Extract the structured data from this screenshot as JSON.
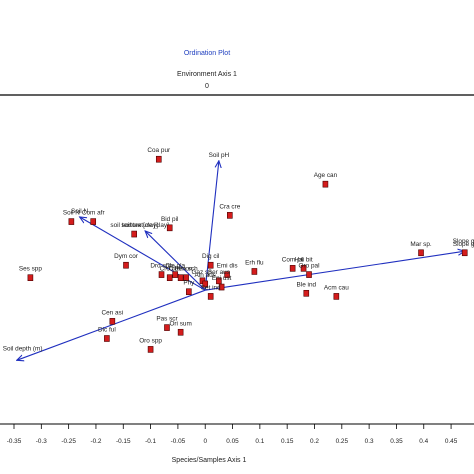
{
  "chart_data": {
    "type": "scatter",
    "title": "Ordination Plot",
    "top_axis_label": "Environment Axis 1",
    "top_axis_tick": "0",
    "xlabel": "Species/Samples Axis 1",
    "ylabel": "",
    "xlim": [
      -0.35,
      0.47
    ],
    "ylim": [
      -0.41,
      0.61
    ],
    "x_ticks": [
      "-0.35",
      "-0.3",
      "-0.25",
      "-0.2",
      "-0.15",
      "-0.1",
      "-0.05",
      "0",
      "0.05",
      "0.1",
      "0.15",
      "0.2",
      "0.25",
      "0.3",
      "0.35",
      "0.4",
      "0.45"
    ],
    "x_tick_values": [
      -0.35,
      -0.3,
      -0.25,
      -0.2,
      -0.15,
      -0.1,
      -0.05,
      0,
      0.05,
      0.1,
      0.15,
      0.2,
      0.25,
      0.3,
      0.35,
      0.4,
      0.45
    ],
    "grid": false,
    "colors": {
      "vector": "#1f2fbf",
      "point_fill": "#d41c1c",
      "point_stroke": "#4a0000"
    },
    "points": [
      {
        "label": "Coa pur",
        "x": -0.085,
        "y": 0.42
      },
      {
        "label": "Age can",
        "x": 0.22,
        "y": 0.34
      },
      {
        "label": "Soil N",
        "x": -0.245,
        "y": 0.22
      },
      {
        "label": "Com afr",
        "x": -0.205,
        "y": 0.22
      },
      {
        "label": "soil texture [clay]",
        "x": -0.13,
        "y": 0.18
      },
      {
        "label": "Bid pil",
        "x": -0.065,
        "y": 0.2
      },
      {
        "label": "Cra cre",
        "x": 0.045,
        "y": 0.24
      },
      {
        "label": "Slope gr",
        "x": 0.475,
        "y": 0.12
      },
      {
        "label": "Mar sp.",
        "x": 0.395,
        "y": 0.12
      },
      {
        "label": "Ses spp",
        "x": -0.32,
        "y": 0.04
      },
      {
        "label": "Dym cor",
        "x": -0.145,
        "y": 0.08
      },
      {
        "label": "Dro spp",
        "x": -0.08,
        "y": 0.05
      },
      {
        "label": "Cro cal",
        "x": -0.065,
        "y": 0.04
      },
      {
        "label": "Cle gla",
        "x": -0.055,
        "y": 0.05
      },
      {
        "label": "Cle mon",
        "x": -0.045,
        "y": 0.04
      },
      {
        "label": "Pen sch",
        "x": -0.035,
        "y": 0.04
      },
      {
        "label": "Dig cil",
        "x": 0.01,
        "y": 0.08
      },
      {
        "label": "Emi dis",
        "x": 0.04,
        "y": 0.05
      },
      {
        "label": "Erh flu",
        "x": 0.09,
        "y": 0.06
      },
      {
        "label": "Ser aus",
        "x": 0.025,
        "y": 0.03
      },
      {
        "label": "Gaz sp.",
        "x": -0.005,
        "y": 0.03
      },
      {
        "label": "Ain aus",
        "x": 0.0,
        "y": 0.02
      },
      {
        "label": "Eni ust",
        "x": 0.03,
        "y": 0.01
      },
      {
        "label": "Phy",
        "x": -0.03,
        "y": -0.005
      },
      {
        "label": "Set ind",
        "x": 0.01,
        "y": -0.02
      },
      {
        "label": "Com pil",
        "x": 0.16,
        "y": 0.07
      },
      {
        "label": "Hai bit",
        "x": 0.18,
        "y": 0.07
      },
      {
        "label": "Oro pal",
        "x": 0.19,
        "y": 0.05
      },
      {
        "label": "Ble ind",
        "x": 0.185,
        "y": -0.01
      },
      {
        "label": "Acm cau",
        "x": 0.24,
        "y": -0.02
      },
      {
        "label": "Cen asi",
        "x": -0.17,
        "y": -0.1
      },
      {
        "label": "Dic ful",
        "x": -0.18,
        "y": -0.155
      },
      {
        "label": "Pas scr",
        "x": -0.07,
        "y": -0.12
      },
      {
        "label": "Ori sum",
        "x": -0.045,
        "y": -0.135
      },
      {
        "label": "Oro spp",
        "x": -0.1,
        "y": -0.19
      }
    ],
    "vectors": [
      {
        "label": "Soil pH",
        "x": 0.025,
        "y": 0.415
      },
      {
        "label": "Soil N",
        "x": -0.23,
        "y": 0.235
      },
      {
        "label": "soil texture [clay]",
        "x": -0.11,
        "y": 0.19
      },
      {
        "label": "Slope gr",
        "x": 0.475,
        "y": 0.125
      },
      {
        "label": "Soil depth (m)",
        "x": -0.345,
        "y": -0.225
      }
    ]
  }
}
